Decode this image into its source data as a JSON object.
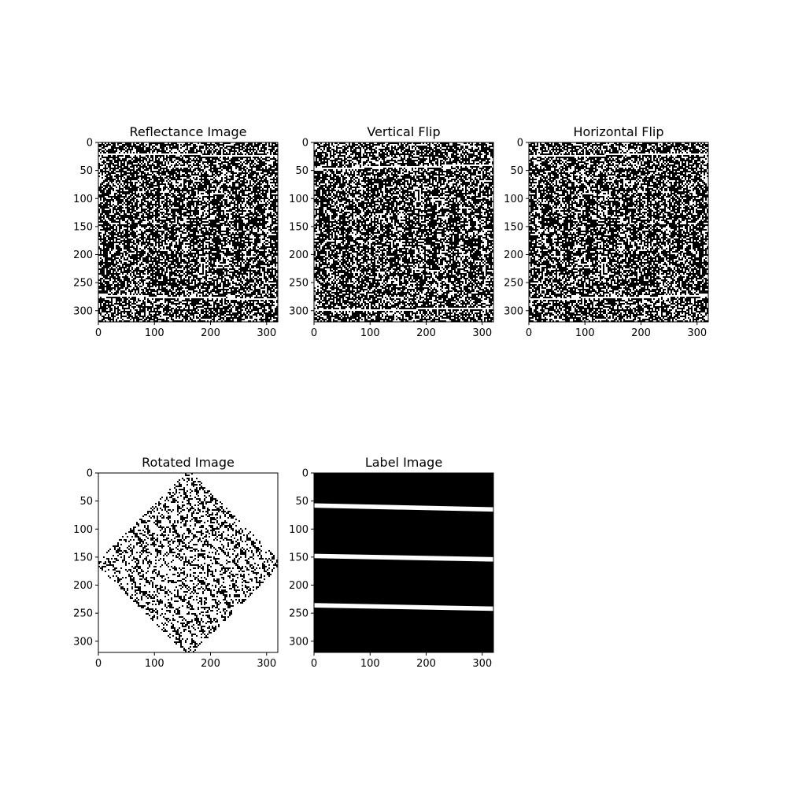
{
  "figure": {
    "background": "#ffffff"
  },
  "chart_data": [
    {
      "type": "heatmap",
      "title": "Reflectance Image",
      "xlim": [
        0,
        320
      ],
      "ylim": [
        0,
        320
      ],
      "x_ticks": [
        0,
        100,
        200,
        300
      ],
      "y_ticks": [
        0,
        50,
        100,
        150,
        200,
        250,
        300
      ],
      "colormap": [
        "#000000",
        "#ffffff"
      ],
      "content": "binary-noise"
    },
    {
      "type": "heatmap",
      "title": "Vertical Flip",
      "xlim": [
        0,
        320
      ],
      "ylim": [
        0,
        320
      ],
      "x_ticks": [
        0,
        100,
        200,
        300
      ],
      "y_ticks": [
        0,
        50,
        100,
        150,
        200,
        250,
        300
      ],
      "colormap": [
        "#000000",
        "#ffffff"
      ],
      "content": "binary-noise"
    },
    {
      "type": "heatmap",
      "title": "Horizontal Flip",
      "xlim": [
        0,
        320
      ],
      "ylim": [
        0,
        320
      ],
      "x_ticks": [
        0,
        100,
        200,
        300
      ],
      "y_ticks": [
        0,
        50,
        100,
        150,
        200,
        250,
        300
      ],
      "colormap": [
        "#000000",
        "#ffffff"
      ],
      "content": "binary-noise"
    },
    {
      "type": "heatmap",
      "title": "Rotated Image",
      "xlim": [
        0,
        320
      ],
      "ylim": [
        0,
        320
      ],
      "x_ticks": [
        0,
        100,
        200,
        300
      ],
      "y_ticks": [
        0,
        50,
        100,
        150,
        200,
        250,
        300
      ],
      "colormap": [
        "#000000",
        "#ffffff"
      ],
      "content": "rotated-45-binary-noise"
    },
    {
      "type": "heatmap",
      "title": "Label Image",
      "xlim": [
        0,
        320
      ],
      "ylim": [
        0,
        320
      ],
      "x_ticks": [
        0,
        100,
        200,
        300
      ],
      "y_ticks": [
        0,
        50,
        100,
        150,
        200,
        250,
        300
      ],
      "colormap": [
        "#000000",
        "#ffffff"
      ],
      "content": "label-lines",
      "label_lines": [
        {
          "y_start": 58,
          "y_end": 65
        },
        {
          "y_start": 148,
          "y_end": 154
        },
        {
          "y_start": 236,
          "y_end": 242
        }
      ]
    }
  ]
}
